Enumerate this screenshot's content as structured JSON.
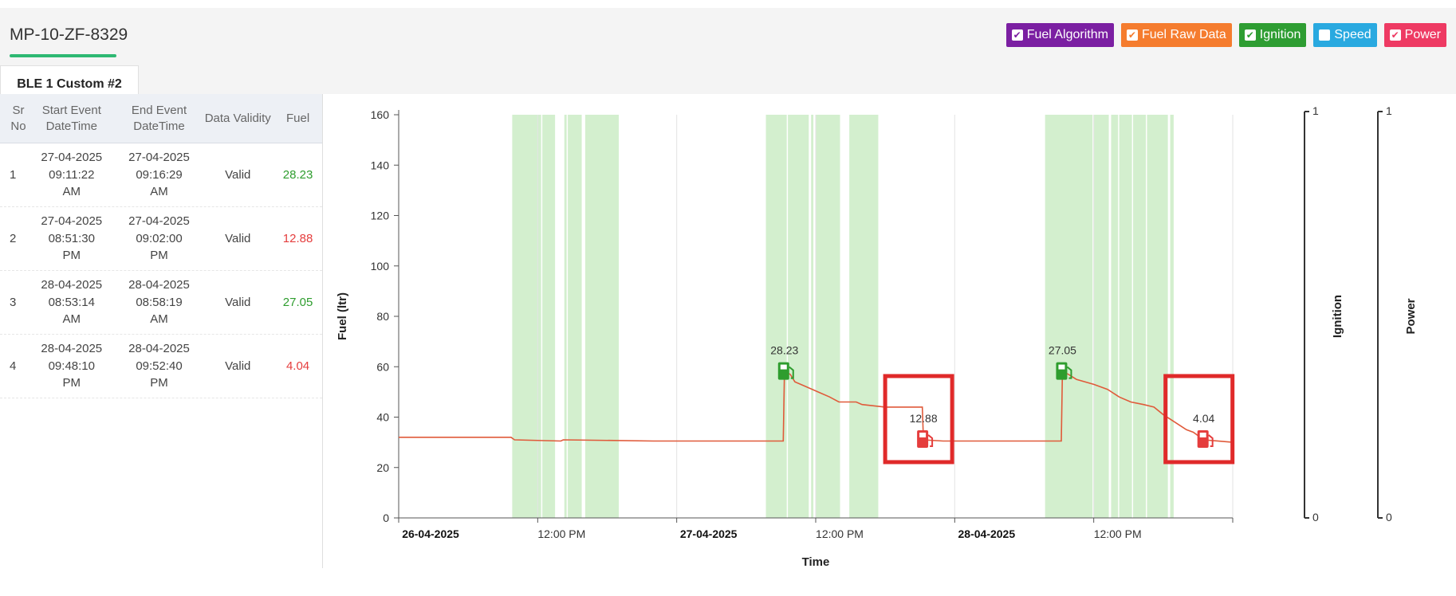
{
  "header": {
    "vehicle_id": "MP-10-ZF-8329",
    "tab_label": "BLE 1 Custom #2"
  },
  "legend": [
    {
      "label": "Fuel Algorithm",
      "color": "#7b1fa2",
      "checked": true
    },
    {
      "label": "Fuel Raw Data",
      "color": "#f57c2e",
      "checked": true
    },
    {
      "label": "Ignition",
      "color": "#2e9d32",
      "checked": true
    },
    {
      "label": "Speed",
      "color": "#29a9e0",
      "checked": false
    },
    {
      "label": "Power",
      "color": "#ee3a63",
      "checked": true
    }
  ],
  "table": {
    "headers": {
      "sr": "Sr No",
      "start": "Start Event DateTime",
      "end": "End Event DateTime",
      "validity": "Data Validity",
      "fuel": "Fuel"
    },
    "rows": [
      {
        "sr": "1",
        "start_date": "27-04-2025",
        "start_time": "09:11:22",
        "start_ampm": "AM",
        "end_date": "27-04-2025",
        "end_time": "09:16:29",
        "end_ampm": "AM",
        "validity": "Valid",
        "fuel": "28.23",
        "kind": "refill"
      },
      {
        "sr": "2",
        "start_date": "27-04-2025",
        "start_time": "08:51:30",
        "start_ampm": "PM",
        "end_date": "27-04-2025",
        "end_time": "09:02:00",
        "end_ampm": "PM",
        "validity": "Valid",
        "fuel": "12.88",
        "kind": "drain"
      },
      {
        "sr": "3",
        "start_date": "28-04-2025",
        "start_time": "08:53:14",
        "start_ampm": "AM",
        "end_date": "28-04-2025",
        "end_time": "08:58:19",
        "end_ampm": "AM",
        "validity": "Valid",
        "fuel": "27.05",
        "kind": "refill"
      },
      {
        "sr": "4",
        "start_date": "28-04-2025",
        "start_time": "09:48:10",
        "start_ampm": "PM",
        "end_date": "28-04-2025",
        "end_time": "09:52:40",
        "end_ampm": "PM",
        "validity": "Valid",
        "fuel": "4.04",
        "kind": "drain"
      }
    ]
  },
  "chart_data": {
    "type": "line",
    "xlabel": "Time",
    "ylabel": "Fuel (ltr)",
    "ylim": [
      0,
      160
    ],
    "yticks": [
      0,
      20,
      40,
      60,
      80,
      100,
      120,
      140,
      160
    ],
    "xlim_hours": [
      0,
      72
    ],
    "xticks": [
      {
        "hour": 0,
        "label": "26-04-2025",
        "bold": true
      },
      {
        "hour": 12,
        "label": "12:00 PM",
        "bold": false
      },
      {
        "hour": 24,
        "label": "27-04-2025",
        "bold": true
      },
      {
        "hour": 36,
        "label": "12:00 PM",
        "bold": false
      },
      {
        "hour": 48,
        "label": "28-04-2025",
        "bold": true
      },
      {
        "hour": 60,
        "label": "12:00 PM",
        "bold": false
      }
    ],
    "secondary_axes": [
      {
        "label": "Ignition",
        "min": "0",
        "max": "1"
      },
      {
        "label": "Power",
        "min": "0",
        "max": "1"
      }
    ],
    "series": [
      {
        "kind": "fuel",
        "color": "#e05a3a",
        "points": [
          [
            0,
            32
          ],
          [
            9.7,
            32
          ],
          [
            10,
            31
          ],
          [
            14,
            30.5
          ],
          [
            14.2,
            31
          ],
          [
            22,
            30.5
          ],
          [
            33,
            30.5
          ],
          [
            33.2,
            30.5
          ],
          [
            33.3,
            58
          ],
          [
            33.8,
            57
          ],
          [
            34.2,
            54
          ],
          [
            35.2,
            52
          ],
          [
            36.2,
            50
          ],
          [
            37.2,
            48
          ],
          [
            38,
            46
          ],
          [
            39.5,
            46
          ],
          [
            40,
            45
          ],
          [
            42,
            44
          ],
          [
            45.2,
            44
          ],
          [
            45.3,
            31
          ],
          [
            47,
            30.5
          ],
          [
            57,
            30.5
          ],
          [
            57.2,
            30.5
          ],
          [
            57.3,
            58
          ],
          [
            57.8,
            57
          ],
          [
            58.5,
            55
          ],
          [
            60,
            53
          ],
          [
            61.2,
            51
          ],
          [
            62.2,
            48
          ],
          [
            63.2,
            46
          ],
          [
            64.3,
            45
          ],
          [
            65.2,
            44
          ],
          [
            66,
            41
          ],
          [
            67,
            38
          ],
          [
            68,
            35
          ],
          [
            68.6,
            34
          ],
          [
            69.5,
            31
          ],
          [
            72,
            30
          ]
        ]
      }
    ],
    "ignition_on_hours": [
      [
        9.8,
        12.3
      ],
      [
        12.4,
        13.5
      ],
      [
        14.3,
        14.5
      ],
      [
        14.6,
        15.8
      ],
      [
        16.1,
        19
      ],
      [
        31.7,
        33.5
      ],
      [
        33.6,
        35.4
      ],
      [
        35.6,
        35.8
      ],
      [
        36,
        38.1
      ],
      [
        38.9,
        41.4
      ],
      [
        55.8,
        59.9
      ],
      [
        60,
        61.3
      ],
      [
        61.5,
        62.1
      ],
      [
        62.2,
        63.3
      ],
      [
        63.4,
        64.5
      ],
      [
        64.6,
        66.4
      ],
      [
        66.6,
        66.9
      ]
    ],
    "events": [
      {
        "hour": 33.3,
        "fuel_at": 58,
        "label": "28.23",
        "kind": "refill"
      },
      {
        "hour": 45.3,
        "fuel_at": 31,
        "label": "12.88",
        "kind": "drain"
      },
      {
        "hour": 57.3,
        "fuel_at": 58,
        "label": "27.05",
        "kind": "refill"
      },
      {
        "hour": 69.5,
        "fuel_at": 31,
        "label": "4.04",
        "kind": "drain"
      }
    ],
    "colors": {
      "ignition_band": "#d3efce",
      "refill": "#2e9d2e",
      "drain": "#e53d3d",
      "grid": "#e3e3e3"
    }
  }
}
